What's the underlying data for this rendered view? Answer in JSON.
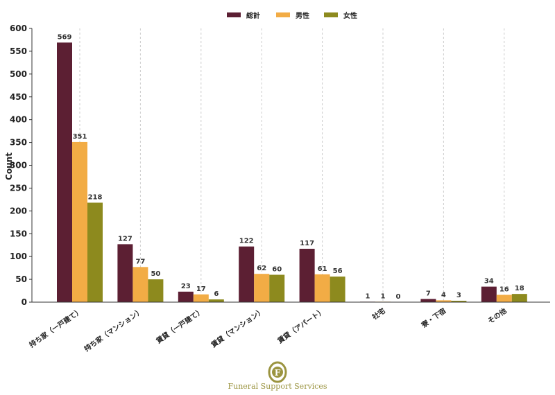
{
  "chart_data": {
    "type": "bar",
    "title": "",
    "xlabel": "",
    "ylabel": "Count",
    "ylim": [
      0,
      600
    ],
    "yticks": [
      0,
      50,
      100,
      150,
      200,
      250,
      300,
      350,
      400,
      450,
      500,
      550,
      600
    ],
    "grid": "vertical dashed",
    "legend_position": "top-center",
    "categories": [
      "持ち家（一戸建て）",
      "持ち家（マンション）",
      "賃貸（一戸建て）",
      "賃貸（マンション）",
      "賃貸（アパート）",
      "社宅",
      "寮・下宿",
      "その他"
    ],
    "series": [
      {
        "name": "総計",
        "color": "#5c1f33",
        "values": [
          569,
          127,
          23,
          122,
          117,
          1,
          7,
          34
        ]
      },
      {
        "name": "男性",
        "color": "#f2ac45",
        "values": [
          351,
          77,
          17,
          62,
          61,
          1,
          4,
          16
        ]
      },
      {
        "name": "女性",
        "color": "#8d8a1e",
        "values": [
          218,
          50,
          6,
          60,
          56,
          0,
          3,
          18
        ]
      }
    ]
  },
  "footer": {
    "brand": "Funeral Support Services",
    "logo_letter": "F"
  }
}
